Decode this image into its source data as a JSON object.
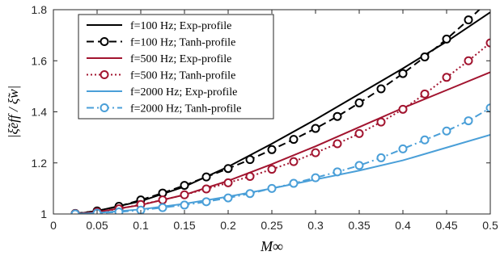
{
  "chart_data": {
    "type": "line",
    "xlabel": "M∞",
    "ylabel": "|ξ̃eff / ξ̃w|",
    "xlim": [
      0,
      0.5
    ],
    "ylim": [
      1,
      1.8
    ],
    "xticks": [
      "0",
      "0.05",
      "0.1",
      "0.15",
      "0.2",
      "0.25",
      "0.3",
      "0.35",
      "0.4",
      "0.45",
      "0.5"
    ],
    "yticks": [
      "1",
      "1.2",
      "1.4",
      "1.6",
      "1.8"
    ],
    "legend_position": "top-left",
    "grid": false,
    "series": [
      {
        "name": "f=100 Hz; Exp-profile",
        "color": "#000000",
        "style": "solid",
        "marker": "none",
        "x": [
          0.025,
          0.05,
          0.1,
          0.15,
          0.2,
          0.25,
          0.3,
          0.35,
          0.4,
          0.45,
          0.5
        ],
        "y": [
          1.0,
          1.012,
          1.05,
          1.107,
          1.185,
          1.275,
          1.37,
          1.47,
          1.57,
          1.675,
          1.79
        ]
      },
      {
        "name": "f=100 Hz; Tanh-profile",
        "color": "#000000",
        "style": "dashed",
        "marker": "circle",
        "x": [
          0.025,
          0.05,
          0.075,
          0.1,
          0.125,
          0.15,
          0.175,
          0.2,
          0.225,
          0.25,
          0.275,
          0.3,
          0.325,
          0.35,
          0.375,
          0.4,
          0.425,
          0.45,
          0.475,
          0.5
        ],
        "y": [
          1.002,
          1.012,
          1.03,
          1.055,
          1.082,
          1.112,
          1.145,
          1.178,
          1.213,
          1.252,
          1.292,
          1.335,
          1.382,
          1.435,
          1.49,
          1.55,
          1.615,
          1.685,
          1.76,
          1.84
        ]
      },
      {
        "name": "f=500 Hz; Exp-profile",
        "color": "#A2142F",
        "style": "solid",
        "marker": "none",
        "x": [
          0.025,
          0.05,
          0.1,
          0.15,
          0.2,
          0.25,
          0.3,
          0.35,
          0.4,
          0.45,
          0.5
        ],
        "y": [
          1.0,
          1.008,
          1.035,
          1.075,
          1.13,
          1.195,
          1.265,
          1.34,
          1.415,
          1.485,
          1.555
        ]
      },
      {
        "name": "f=500 Hz; Tanh-profile",
        "color": "#A2142F",
        "style": "dotted",
        "marker": "circle",
        "x": [
          0.025,
          0.05,
          0.075,
          0.1,
          0.125,
          0.15,
          0.175,
          0.2,
          0.225,
          0.25,
          0.275,
          0.3,
          0.325,
          0.35,
          0.375,
          0.4,
          0.425,
          0.45,
          0.475,
          0.5
        ],
        "y": [
          1.001,
          1.008,
          1.02,
          1.037,
          1.055,
          1.075,
          1.098,
          1.122,
          1.147,
          1.175,
          1.205,
          1.24,
          1.275,
          1.315,
          1.36,
          1.41,
          1.47,
          1.535,
          1.6,
          1.67
        ]
      },
      {
        "name": "f=2000 Hz; Exp-profile",
        "color": "#4A9FD8",
        "style": "solid",
        "marker": "none",
        "x": [
          0.025,
          0.05,
          0.1,
          0.15,
          0.2,
          0.25,
          0.3,
          0.35,
          0.4,
          0.45,
          0.5
        ],
        "y": [
          1.0,
          1.004,
          1.018,
          1.04,
          1.068,
          1.1,
          1.135,
          1.17,
          1.21,
          1.26,
          1.31
        ]
      },
      {
        "name": "f=2000 Hz; Tanh-profile",
        "color": "#4A9FD8",
        "style": "dashdot",
        "marker": "circle",
        "x": [
          0.025,
          0.05,
          0.075,
          0.1,
          0.125,
          0.15,
          0.175,
          0.2,
          0.225,
          0.25,
          0.275,
          0.3,
          0.325,
          0.35,
          0.375,
          0.4,
          0.425,
          0.45,
          0.475,
          0.5
        ],
        "y": [
          1.0,
          1.003,
          1.008,
          1.015,
          1.025,
          1.035,
          1.048,
          1.063,
          1.08,
          1.1,
          1.12,
          1.142,
          1.165,
          1.19,
          1.22,
          1.255,
          1.29,
          1.325,
          1.365,
          1.415
        ]
      }
    ]
  }
}
